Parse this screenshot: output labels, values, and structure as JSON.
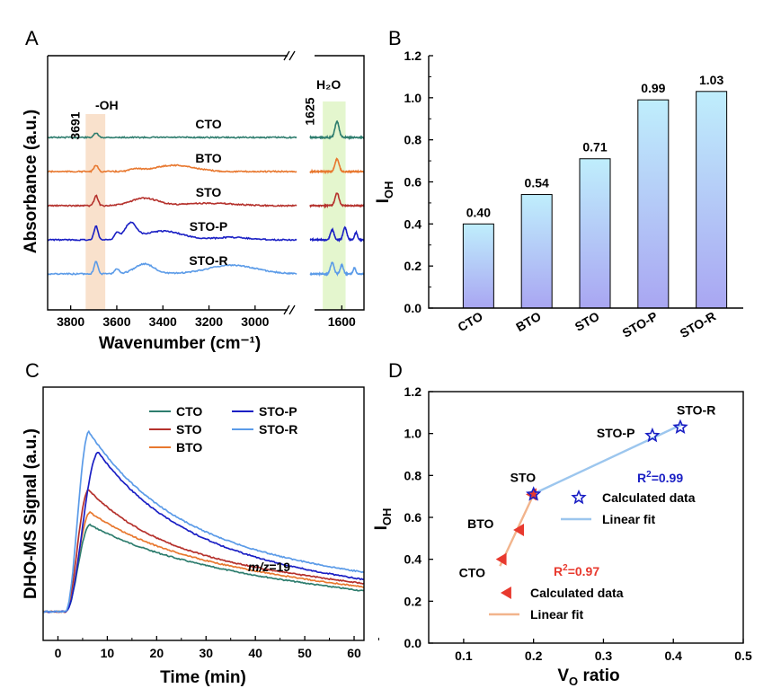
{
  "panels": {
    "A": {
      "label": "A"
    },
    "B": {
      "label": "B"
    },
    "C": {
      "label": "C"
    },
    "D": {
      "label": "D"
    }
  },
  "chart_data": [
    {
      "panel": "A",
      "type": "line",
      "xlabel": "Wavenumber (cm⁻¹)",
      "ylabel": "Absorbance (a.u.)",
      "x_break": true,
      "xlim_left": [
        3900,
        2820
      ],
      "xlim_right": [
        1700,
        1530
      ],
      "xticks_left": [
        3800,
        3600,
        3400,
        3200,
        3000
      ],
      "xticks_right": [
        1600
      ],
      "annotations": {
        "oh_position": "3691",
        "oh_label": "-OH",
        "water_position": "1625",
        "water_label": "H₂O"
      },
      "highlight_bands": [
        {
          "range": [
            3735,
            3650
          ],
          "color": "#f8d9bf",
          "label": "-OH"
        },
        {
          "range": [
            1660,
            1588
          ],
          "color": "#dff5c6",
          "label": "H₂O"
        }
      ],
      "series": [
        {
          "name": "CTO",
          "color": "#2e7d6e",
          "baseline": 0.9,
          "left_peaks": [
            [
              3690,
              0.35,
              12
            ]
          ],
          "right_peaks": [
            [
              1615,
              1.25,
              9
            ]
          ]
        },
        {
          "name": "BTO",
          "color": "#e8782f",
          "baseline": 0.0,
          "left_peaks": [
            [
              3690,
              0.5,
              12
            ],
            [
              3520,
              0.2,
              30
            ],
            [
              3350,
              0.5,
              120
            ]
          ],
          "right_peaks": [
            [
              1615,
              1.0,
              9
            ]
          ]
        },
        {
          "name": "STO",
          "color": "#b5312c",
          "baseline": -0.9,
          "left_peaks": [
            [
              3690,
              0.8,
              12
            ],
            [
              3480,
              0.6,
              80
            ],
            [
              3200,
              0.2,
              150
            ]
          ],
          "right_peaks": [
            [
              1615,
              1.0,
              9
            ]
          ]
        },
        {
          "name": "STO-P",
          "color": "#1a1fc4",
          "baseline": -1.8,
          "left_peaks": [
            [
              3690,
              1.1,
              12
            ],
            [
              3600,
              0.5,
              15
            ],
            [
              3540,
              1.2,
              35
            ],
            [
              3400,
              0.7,
              120
            ],
            [
              3100,
              0.2,
              100
            ]
          ],
          "right_peaks": [
            [
              1630,
              0.8,
              8
            ],
            [
              1590,
              1.0,
              8
            ],
            [
              1555,
              0.6,
              6
            ]
          ]
        },
        {
          "name": "STO-R",
          "color": "#5b9be8",
          "baseline": -2.7,
          "left_peaks": [
            [
              3690,
              1.0,
              12
            ],
            [
              3600,
              0.4,
              15
            ],
            [
              3480,
              0.8,
              60
            ],
            [
              3100,
              0.7,
              150
            ]
          ],
          "right_peaks": [
            [
              1630,
              0.9,
              8
            ],
            [
              1600,
              0.7,
              7
            ],
            [
              1560,
              0.5,
              6
            ]
          ]
        }
      ]
    },
    {
      "panel": "B",
      "type": "bar",
      "categories": [
        "CTO",
        "BTO",
        "STO",
        "STO-P",
        "STO-R"
      ],
      "values": [
        0.4,
        0.54,
        0.71,
        0.99,
        1.03
      ],
      "value_labels": [
        "0.40",
        "0.54",
        "0.71",
        "0.99",
        "1.03"
      ],
      "ylabel": "I",
      "ylabel_sub": "OH",
      "ylim": [
        0,
        1.2
      ],
      "yticks": [
        0.0,
        0.2,
        0.4,
        0.6,
        0.8,
        1.0,
        1.2
      ],
      "bar_gradient": [
        "#bfeefc",
        "#a9a6f2"
      ]
    },
    {
      "panel": "C",
      "type": "line",
      "xlabel": "Time (min)",
      "ylabel": "DHO-MS Signal (a.u.)",
      "xlim": [
        -3,
        62
      ],
      "xticks": [
        0,
        10,
        20,
        30,
        40,
        50,
        60
      ],
      "annotation": {
        "italic": "m/z",
        "rest": "=19"
      },
      "series": [
        {
          "name": "CTO",
          "color": "#2e7d6e",
          "baseline": 0.0,
          "peak_time": 6.5,
          "peak": 0.42,
          "tail": 0.23,
          "decay": 0.055
        },
        {
          "name": "STO",
          "color": "#b5312c",
          "baseline": 0.0,
          "peak_time": 6.2,
          "peak": 0.59,
          "tail": 0.27,
          "decay": 0.07
        },
        {
          "name": "BTO",
          "color": "#e8782f",
          "baseline": 0.0,
          "peak_time": 6.5,
          "peak": 0.48,
          "tail": 0.25,
          "decay": 0.06
        },
        {
          "name": "STO-P",
          "color": "#1a1fc4",
          "baseline": 0.0,
          "peak_time": 8.2,
          "peak": 0.77,
          "tail": 0.27,
          "decay": 0.06
        },
        {
          "name": "STO-R",
          "color": "#5b9be8",
          "baseline": 0.0,
          "peak_time": 6.3,
          "peak": 0.87,
          "tail": 0.31,
          "decay": 0.06
        }
      ],
      "legend": [
        [
          "CTO",
          "STO-P"
        ],
        [
          "STO",
          "STO-R"
        ],
        [
          "BTO",
          ""
        ]
      ]
    },
    {
      "panel": "D",
      "type": "scatter",
      "xlabel": "V",
      "xlabel_sub": "O",
      "xlabel_rest": " ratio",
      "ylabel": "I",
      "ylabel_sub": "OH",
      "xlim": [
        0.05,
        0.5
      ],
      "ylim": [
        0,
        1.2
      ],
      "xticks": [
        "0.1",
        "0.2",
        "0.3",
        "0.4",
        "0.5"
      ],
      "yticks": [
        "0.0",
        "0.2",
        "0.4",
        "0.6",
        "0.8",
        "1.0",
        "1.2"
      ],
      "groups": [
        {
          "marker": "triangle-left",
          "color": "#e8392e",
          "fit_color": "#f2b48c",
          "points": [
            {
              "label": "CTO",
              "x": 0.155,
              "y": 0.4
            },
            {
              "label": "BTO",
              "x": 0.18,
              "y": 0.54
            },
            {
              "label": "STO",
              "x": 0.198,
              "y": 0.71
            }
          ],
          "r2_prefix": "R",
          "r2_sup": "2",
          "r2_value": "=0.97",
          "legend_marker": "Calculated data",
          "legend_fit": "Linear fit"
        },
        {
          "marker": "star",
          "color": "#1a1fc4",
          "fit_color": "#9cc6ee",
          "points": [
            {
              "label": "STO",
              "x": 0.2,
              "y": 0.71
            },
            {
              "label": "STO-P",
              "x": 0.37,
              "y": 0.99
            },
            {
              "label": "STO-R",
              "x": 0.41,
              "y": 1.03
            }
          ],
          "r2_prefix": "R",
          "r2_sup": "2",
          "r2_value": "=0.99",
          "legend_marker": "Calculated data",
          "legend_fit": "Linear fit"
        }
      ]
    }
  ]
}
